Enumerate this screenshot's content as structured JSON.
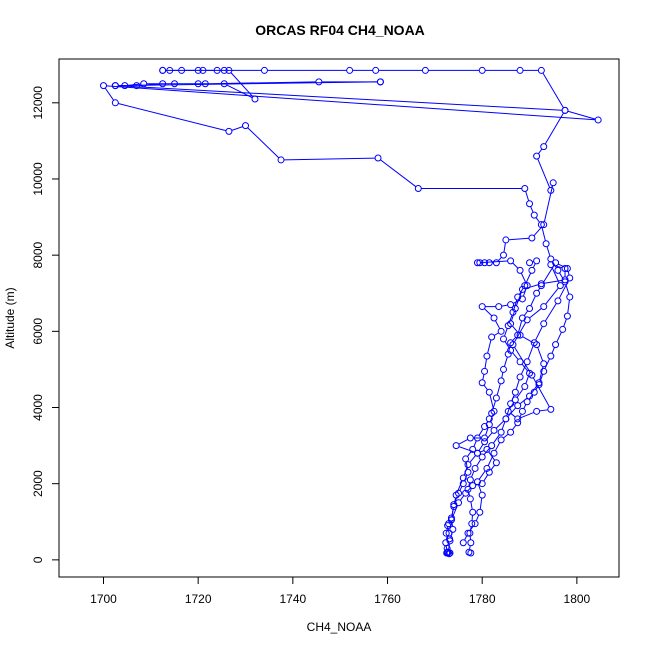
{
  "chart_data": {
    "type": "line",
    "title": "ORCAS RF04 CH4_NOAA",
    "xlabel": "CH4_NOAA",
    "ylabel": "Altitude (m)",
    "xlim": [
      1690.6,
      1808.9
    ],
    "ylim": [
      -450,
      13150
    ],
    "xticks": [
      1700,
      1720,
      1740,
      1760,
      1780,
      1800
    ],
    "yticks": [
      0,
      2000,
      4000,
      6000,
      8000,
      10000,
      12000
    ],
    "grid": false,
    "legend": "none",
    "colors": {
      "series": "#0000ff",
      "axis": "#000000"
    },
    "series": [
      {
        "points": [
          [
            1772.8,
            200
          ],
          [
            1772.5,
            180
          ],
          [
            1773.0,
            160
          ],
          [
            1772.6,
            300
          ],
          [
            1773.1,
            550
          ],
          [
            1772.4,
            700
          ],
          [
            1772.9,
            950
          ],
          [
            1773.5,
            1050
          ],
          [
            1774.0,
            1450
          ],
          [
            1775.0,
            1750
          ],
          [
            1776.0,
            2000
          ],
          [
            1777.0,
            2300
          ],
          [
            1776.5,
            2650
          ],
          [
            1778.0,
            2900
          ],
          [
            1779.0,
            3200
          ],
          [
            1780.5,
            3500
          ],
          [
            1781.5,
            3700
          ],
          [
            1782.0,
            3850
          ],
          [
            1783.0,
            4250
          ],
          [
            1784.0,
            4700
          ],
          [
            1784.5,
            5000
          ],
          [
            1785.5,
            5400
          ],
          [
            1786.0,
            5700
          ],
          [
            1787.5,
            5900
          ],
          [
            1788.5,
            6350
          ],
          [
            1790.0,
            6600
          ],
          [
            1791.5,
            7000
          ],
          [
            1792.5,
            7200
          ],
          [
            1795.5,
            7800
          ],
          [
            1798.0,
            7650
          ],
          [
            1798.5,
            7400
          ],
          [
            1796.0,
            6800
          ],
          [
            1793.0,
            6200
          ],
          [
            1791.0,
            5700
          ],
          [
            1789.5,
            5200
          ],
          [
            1788.0,
            4800
          ],
          [
            1787.0,
            4400
          ],
          [
            1786.0,
            4100
          ],
          [
            1785.0,
            3700
          ],
          [
            1784.0,
            3350
          ],
          [
            1782.0,
            3000
          ],
          [
            1780.0,
            2700
          ],
          [
            1778.5,
            2400
          ],
          [
            1777.5,
            2100
          ],
          [
            1777.0,
            1850
          ],
          [
            1777.5,
            1600
          ],
          [
            1778.0,
            1250
          ],
          [
            1777.8,
            950
          ],
          [
            1777.4,
            700
          ],
          [
            1777.6,
            450
          ],
          [
            1777.2,
            200
          ],
          [
            1777.6,
            180
          ]
        ]
      },
      {
        "points": [
          [
            1776.0,
            450
          ],
          [
            1777.0,
            700
          ],
          [
            1778.5,
            950
          ],
          [
            1779.5,
            1250
          ],
          [
            1780.0,
            1700
          ],
          [
            1779.0,
            2050
          ],
          [
            1781.0,
            2400
          ],
          [
            1782.5,
            2800
          ],
          [
            1784.0,
            3150
          ],
          [
            1786.0,
            3350
          ],
          [
            1787.5,
            3600
          ],
          [
            1788.5,
            3900
          ],
          [
            1789.5,
            4150
          ],
          [
            1791.0,
            4400
          ],
          [
            1792.0,
            4600
          ],
          [
            1793.0,
            4950
          ],
          [
            1794.5,
            5350
          ],
          [
            1795.5,
            5650
          ],
          [
            1797.0,
            6050
          ],
          [
            1798.0,
            6400
          ],
          [
            1798.5,
            6900
          ],
          [
            1797.5,
            7300
          ],
          [
            1796.0,
            7600
          ],
          [
            1794.5,
            7900
          ],
          [
            1793.5,
            8300
          ],
          [
            1792.5,
            8800
          ],
          [
            1791.0,
            9050
          ],
          [
            1790.0,
            9350
          ],
          [
            1789.0,
            9750
          ],
          [
            1766.5,
            9750
          ],
          [
            1758.0,
            10550
          ],
          [
            1737.5,
            10500
          ],
          [
            1730.0,
            11400
          ],
          [
            1726.5,
            11250
          ],
          [
            1702.5,
            12000
          ],
          [
            1700.0,
            12450
          ],
          [
            1804.5,
            11550
          ],
          [
            1797.5,
            11800
          ],
          [
            1792.5,
            12850
          ],
          [
            1788.0,
            12850
          ],
          [
            1780.0,
            12850
          ],
          [
            1768.0,
            12850
          ],
          [
            1757.5,
            12850
          ],
          [
            1752.0,
            12850
          ],
          [
            1734.0,
            12850
          ],
          [
            1725.5,
            12850
          ],
          [
            1721.0,
            12850
          ],
          [
            1714.0,
            12850
          ],
          [
            1712.5,
            12850
          ]
        ]
      },
      {
        "points": [
          [
            1712.5,
            12850
          ],
          [
            1716.5,
            12850
          ],
          [
            1720.0,
            12850
          ],
          [
            1724.0,
            12850
          ],
          [
            1726.5,
            12850
          ],
          [
            1732.0,
            12100
          ],
          [
            1725.5,
            12500
          ],
          [
            1720.0,
            12500
          ],
          [
            1712.5,
            12500
          ],
          [
            1707.0,
            12450
          ],
          [
            1702.5,
            12450
          ],
          [
            1704.5,
            12450
          ],
          [
            1708.5,
            12500
          ],
          [
            1715.0,
            12500
          ],
          [
            1721.5,
            12500
          ],
          [
            1745.5,
            12550
          ],
          [
            1758.5,
            12550
          ]
        ]
      },
      {
        "points": [
          [
            1758.5,
            12550
          ],
          [
            1702.5,
            12450
          ],
          [
            1797.5,
            11800
          ],
          [
            1793.0,
            10850
          ],
          [
            1791.5,
            10600
          ],
          [
            1794.5,
            9700
          ],
          [
            1795.0,
            9900
          ],
          [
            1793.0,
            8800
          ],
          [
            1790.5,
            8450
          ],
          [
            1785.0,
            8400
          ],
          [
            1784.5,
            8000
          ],
          [
            1783.0,
            7800
          ],
          [
            1781.5,
            7800
          ],
          [
            1780.5,
            7800
          ],
          [
            1779.5,
            7800
          ],
          [
            1779.0,
            7800
          ],
          [
            1786.0,
            7850
          ],
          [
            1788.0,
            7600
          ],
          [
            1789.5,
            7200
          ],
          [
            1788.5,
            6850
          ],
          [
            1786.0,
            6700
          ],
          [
            1783.5,
            6650
          ],
          [
            1780.0,
            6650
          ],
          [
            1782.5,
            6350
          ],
          [
            1784.0,
            6000
          ],
          [
            1782.0,
            5850
          ],
          [
            1781.0,
            5350
          ],
          [
            1780.5,
            4950
          ],
          [
            1780.0,
            4650
          ],
          [
            1781.5,
            4400
          ],
          [
            1782.5,
            3900
          ],
          [
            1781.5,
            3550
          ],
          [
            1780.5,
            3200
          ],
          [
            1777.5,
            3200
          ],
          [
            1774.5,
            3000
          ],
          [
            1779.0,
            2800
          ],
          [
            1781.0,
            2900
          ],
          [
            1783.0,
            2550
          ],
          [
            1781.5,
            2300
          ],
          [
            1780.0,
            2000
          ],
          [
            1778.0,
            1950
          ],
          [
            1776.5,
            1750
          ],
          [
            1775.0,
            1500
          ],
          [
            1773.5,
            1050
          ],
          [
            1772.7,
            900
          ],
          [
            1773.0,
            700
          ],
          [
            1772.3,
            450
          ],
          [
            1772.6,
            200
          ]
        ]
      },
      {
        "points": [
          [
            1790.0,
            7800
          ],
          [
            1791.5,
            7850
          ],
          [
            1790.5,
            7600
          ],
          [
            1789.0,
            7200
          ],
          [
            1787.5,
            6900
          ],
          [
            1786.5,
            6500
          ],
          [
            1785.5,
            6150
          ],
          [
            1784.5,
            5800
          ],
          [
            1786.0,
            5500
          ],
          [
            1788.0,
            5200
          ],
          [
            1790.0,
            4900
          ],
          [
            1789.0,
            4550
          ],
          [
            1787.0,
            4200
          ],
          [
            1785.5,
            3900
          ],
          [
            1787.5,
            3700
          ],
          [
            1791.5,
            3900
          ],
          [
            1794.5,
            3950
          ],
          [
            1790.5,
            4850
          ],
          [
            1786.5,
            5650
          ],
          [
            1789.5,
            6300
          ],
          [
            1793.0,
            6650
          ],
          [
            1796.5,
            7200
          ],
          [
            1794.5,
            7750
          ],
          [
            1797.5,
            7650
          ],
          [
            1797.5,
            7350
          ],
          [
            1792.5,
            7250
          ],
          [
            1788.5,
            7100
          ],
          [
            1787.0,
            6600
          ],
          [
            1786.0,
            6200
          ],
          [
            1788.0,
            5900
          ],
          [
            1791.5,
            5650
          ],
          [
            1793.0,
            5150
          ],
          [
            1792.0,
            4650
          ],
          [
            1790.0,
            4300
          ],
          [
            1787.5,
            4050
          ],
          [
            1785.0,
            3700
          ],
          [
            1782.5,
            3400
          ],
          [
            1780.5,
            3100
          ],
          [
            1779.0,
            2800
          ],
          [
            1777.0,
            2500
          ],
          [
            1776.0,
            2150
          ],
          [
            1774.5,
            1700
          ],
          [
            1774.0,
            1400
          ],
          [
            1773.5,
            1100
          ],
          [
            1773.8,
            800
          ],
          [
            1773.2,
            500
          ],
          [
            1772.8,
            200
          ],
          [
            1773.2,
            180
          ]
        ]
      }
    ]
  }
}
